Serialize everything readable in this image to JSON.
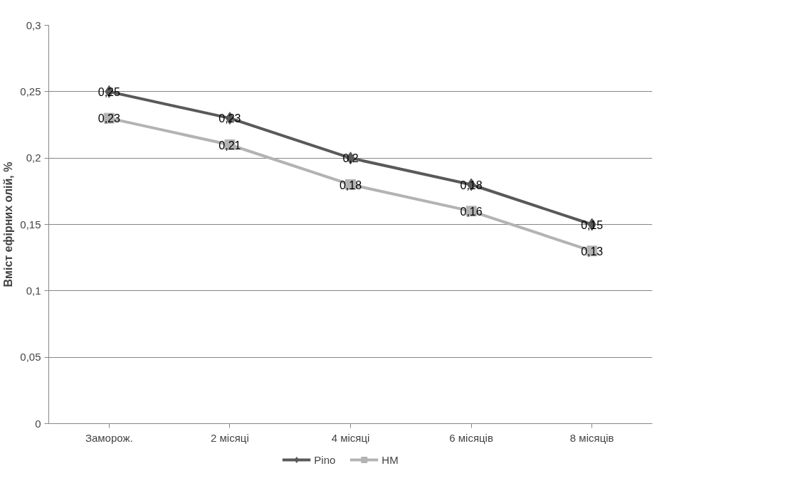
{
  "chart_data": {
    "type": "line",
    "ylabel": "Вміст ефірних олій, %",
    "categories": [
      "Заморож.",
      "2 місяці",
      "4 місяці",
      "6 місяців",
      "8 місяців"
    ],
    "series": [
      {
        "name": "Pino",
        "color": "#595959",
        "marker": "diamond",
        "values": [
          0.25,
          0.23,
          0.2,
          0.18,
          0.15
        ],
        "value_labels": [
          "0,25",
          "0,23",
          "0,2",
          "0,18",
          "0,15"
        ]
      },
      {
        "name": "HM",
        "color": "#b3b3b3",
        "marker": "square",
        "values": [
          0.23,
          0.21,
          0.18,
          0.16,
          0.13
        ],
        "value_labels": [
          "0,23",
          "0,21",
          "0,18",
          "0,16",
          "0,13"
        ]
      }
    ],
    "ylim": [
      0,
      0.3
    ],
    "yticks": [
      {
        "value": 0,
        "label": "0"
      },
      {
        "value": 0.05,
        "label": "0,05"
      },
      {
        "value": 0.1,
        "label": "0,1"
      },
      {
        "value": 0.15,
        "label": "0,15"
      },
      {
        "value": 0.2,
        "label": "0,2"
      },
      {
        "value": 0.25,
        "label": "0,25"
      },
      {
        "value": 0.3,
        "label": "0,3"
      }
    ],
    "grid": "y",
    "legend": "bottom",
    "line_style": "solid"
  }
}
